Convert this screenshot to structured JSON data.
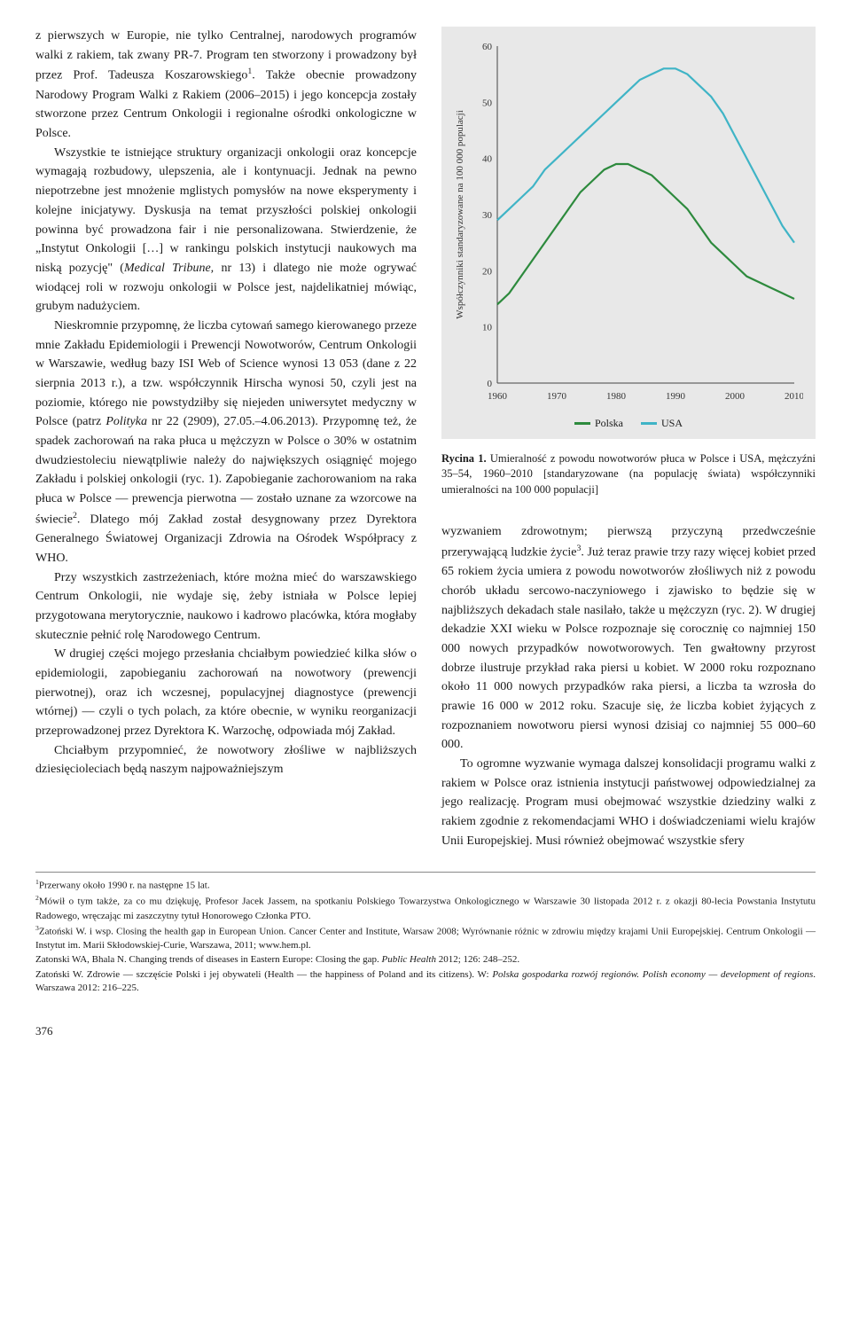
{
  "left_column": {
    "para1": "z pierwszych w Europie, nie tylko Centralnej, narodowych programów walki z rakiem, tak zwany PR-7. Program ten stworzony i prowadzony był przez Prof. Tadeusza Koszarowskiego",
    "para1_sup": "1",
    "para1b": ". Także obecnie prowadzony Narodowy Program Walki z Rakiem (2006–2015) i jego koncepcja zostały stworzone przez Centrum Onkologii i regionalne ośrodki onkologiczne w Polsce.",
    "para2": "Wszystkie te istniejące struktury organizacji onkologii oraz koncepcje wymagają rozbudowy, ulepszenia, ale i kontynuacji. Jednak na pewno niepotrzebne jest mnożenie mglistych pomysłów na nowe eksperymenty i kolejne inicjatywy. Dyskusja na temat przyszłości polskiej onkologii powinna być prowadzona fair i nie personalizowana. Stwierdzenie, że „Instytut Onkologii […] w rankingu polskich instytucji naukowych ma niską pozycję\" (",
    "para2_ital": "Medical Tribune,",
    "para2b": " nr 13) i dlatego nie może ogrywać wiodącej roli w rozwoju onkologii w Polsce jest, najdelikatniej mówiąc, grubym nadużyciem.",
    "para3": "Nieskromnie przypomnę, że liczba cytowań samego kierowanego przeze mnie Zakładu Epidemiologii i Prewencji Nowotworów, Centrum Onkologii w Warszawie, według bazy ISI Web of Science wynosi 13 053 (dane z 22 sierpnia 2013 r.), a tzw. współczynnik Hirscha wynosi 50, czyli jest na poziomie, którego nie powstydziłby się niejeden uniwersytet medyczny w Polsce (patrz ",
    "para3_ital": "Polityka",
    "para3b": " nr 22 (2909), 27.05.–4.06.2013). Przypomnę też, że spadek zachorowań na raka płuca u mężczyzn w Polsce o 30% w ostatnim dwudziestoleciu niewątpliwie należy do największych osiągnięć mojego Zakładu i polskiej onkologii (ryc. 1). Zapobieganie zachorowaniom na raka płuca w Polsce — prewencja pierwotna — zostało uznane za wzorcowe na świecie",
    "para3_sup": "2",
    "para3c": ". Dlatego mój Zakład został desygnowany przez Dyrektora Generalnego Światowej Organizacji Zdrowia na Ośrodek Współpracy z WHO.",
    "para4": "Przy wszystkich zastrzeżeniach, które można mieć do warszawskiego Centrum Onkologii, nie wydaje się, żeby istniała w Polsce lepiej przygotowana merytorycznie, naukowo i kadrowo placówka, która mogłaby skutecznie pełnić rolę Narodowego Centrum.",
    "para5": "W drugiej części mojego przesłania chciałbym powiedzieć kilka słów o epidemiologii, zapobieganiu zachorowań na nowotwory (prewencji pierwotnej), oraz ich wczesnej, populacyjnej diagnostyce (prewencji wtórnej) — czyli o tych polach, za które obecnie, w wyniku reorganizacji przeprowadzonej przez Dyrektora K. Warzochę, odpowiada mój Zakład.",
    "para6": "Chciałbym przypomnieć, że nowotwory złośliwe w najbliższych dziesięcioleciach będą naszym najpoważniejszym"
  },
  "right_column": {
    "para1": "wyzwaniem zdrowotnym; pierwszą przyczyną przedwcześnie przerywającą ludzkie życie",
    "para1_sup": "3",
    "para1b": ". Już teraz prawie trzy razy więcej kobiet przed 65 rokiem życia umiera z powodu nowotworów złośliwych niż z powodu chorób układu sercowo-naczyniowego i zjawisko to będzie się w najbliższych dekadach stale nasilało, także u mężczyzn (ryc. 2). W drugiej dekadzie XXI wieku w Polsce rozpoznaje się corocznię co najmniej 150 000 nowych przypadków nowotworowych. Ten gwałtowny przyrost dobrze ilustruje przykład raka piersi u kobiet. W 2000 roku rozpoznano około 11 000 nowych przypadków raka piersi, a liczba ta wzrosła do prawie 16 000 w 2012 roku. Szacuje się, że liczba kobiet żyjących z rozpoznaniem nowotworu piersi wynosi dzisiaj co najmniej 55 000–60 000.",
    "para2": "To ogromne wyzwanie wymaga dalszej konsolidacji programu walki z rakiem w Polsce oraz istnienia instytucji państwowej odpowiedzialnej za jego realizację. Program musi obejmować wszystkie dziedziny walki z rakiem zgodnie z rekomendacjami WHO i doświadczeniami wielu krajów Unii Europejskiej. Musi również obejmować wszystkie sfery"
  },
  "chart": {
    "ylabel": "Współczynniki standaryzowane na 100 000 populacji",
    "xlim": [
      1960,
      2010
    ],
    "ylim": [
      0,
      60
    ],
    "xticks": [
      1960,
      1970,
      1980,
      1990,
      2000,
      2010
    ],
    "yticks": [
      0,
      10,
      20,
      30,
      40,
      50,
      60
    ],
    "bg_color": "#e8e8e8",
    "line_usa": {
      "color": "#3fb4c6",
      "points": [
        [
          1960,
          29
        ],
        [
          1962,
          31
        ],
        [
          1964,
          33
        ],
        [
          1966,
          35
        ],
        [
          1968,
          38
        ],
        [
          1970,
          40
        ],
        [
          1972,
          42
        ],
        [
          1974,
          44
        ],
        [
          1976,
          46
        ],
        [
          1978,
          48
        ],
        [
          1980,
          50
        ],
        [
          1982,
          52
        ],
        [
          1984,
          54
        ],
        [
          1986,
          55
        ],
        [
          1988,
          56
        ],
        [
          1990,
          56
        ],
        [
          1992,
          55
        ],
        [
          1994,
          53
        ],
        [
          1996,
          51
        ],
        [
          1998,
          48
        ],
        [
          2000,
          44
        ],
        [
          2002,
          40
        ],
        [
          2004,
          36
        ],
        [
          2006,
          32
        ],
        [
          2008,
          28
        ],
        [
          2010,
          25
        ]
      ]
    },
    "line_poland": {
      "color": "#2d8a3d",
      "points": [
        [
          1960,
          14
        ],
        [
          1962,
          16
        ],
        [
          1964,
          19
        ],
        [
          1966,
          22
        ],
        [
          1968,
          25
        ],
        [
          1970,
          28
        ],
        [
          1972,
          31
        ],
        [
          1974,
          34
        ],
        [
          1976,
          36
        ],
        [
          1978,
          38
        ],
        [
          1980,
          39
        ],
        [
          1982,
          39
        ],
        [
          1984,
          38
        ],
        [
          1986,
          37
        ],
        [
          1988,
          35
        ],
        [
          1990,
          33
        ],
        [
          1992,
          31
        ],
        [
          1994,
          28
        ],
        [
          1996,
          25
        ],
        [
          1998,
          23
        ],
        [
          2000,
          21
        ],
        [
          2002,
          19
        ],
        [
          2004,
          18
        ],
        [
          2006,
          17
        ],
        [
          2008,
          16
        ],
        [
          2010,
          15
        ]
      ]
    },
    "legend": {
      "poland": "Polska",
      "usa": "USA"
    }
  },
  "caption": {
    "label": "Rycina 1.",
    "text": " Umieralność z powodu nowotworów płuca w Polsce i USA, mężczyźni 35–54, 1960–2010 [standaryzowane (na populację świata) współczynniki umieralności na 100 000 populacji]"
  },
  "footnotes": {
    "f1_sup": "1",
    "f1": "Przerwany około 1990 r. na następne 15 lat.",
    "f2_sup": "2",
    "f2": "Mówił o tym także, za co mu dziękuję, Profesor Jacek Jassem, na spotkaniu Polskiego Towarzystwa Onkologicznego w Warszawie 30 listopada 2012 r. z okazji 80-lecia Powstania Instytutu Radowego, wręczając mi zaszczytny tytuł Honorowego Członka PTO.",
    "f3_sup": "3",
    "f3": "Zatoński W. i wsp. Closing the health gap in European Union. Cancer Center and Institute, Warsaw 2008; Wyrównanie różnic w zdrowiu między krajami Unii Europejskiej. Centrum Onkologii — Instytut im. Marii Skłodowskiej-Curie, Warszawa, 2011; www.hem.pl.",
    "f4a": "Zatonski WA, Bhala N. Changing trends of diseases in Eastern Europe: Closing the gap. ",
    "f4_ital": "Public Health",
    "f4b": " 2012; 126: 248–252.",
    "f5a": "Zatoński W. Zdrowie — szczęście Polski i jej obywateli (Health — the happiness of Poland and its citizens). W: ",
    "f5_ital": "Polska gospodarka rozwój regionów. Polish economy — development of regions",
    "f5b": ". Warszawa 2012: 216–225."
  },
  "page_number": "376"
}
